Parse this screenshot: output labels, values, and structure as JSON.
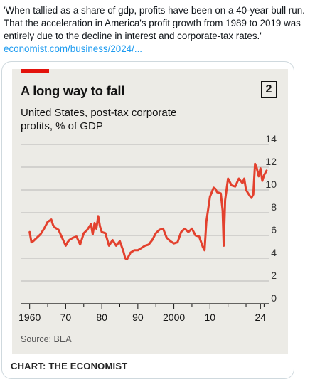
{
  "tweet": {
    "text": "'When tallied as a share of gdp, profits have been on a 40-year bull run. That the acceleration in America's profit growth from 1989 to 2019 was entirely due to the decline in interest and corporate-tax rates.'",
    "link": "economist.com/business/2024/..."
  },
  "card": {
    "footer": "CHART: THE ECONOMIST"
  },
  "chart_data": {
    "type": "line",
    "title": "A long way to fall",
    "chart_number": "2",
    "subtitle": "United States, post-tax corporate profits, % of GDP",
    "source": "Source: BEA",
    "x_tick_labels": [
      "1960",
      "70",
      "80",
      "90",
      "2000",
      "10",
      "24"
    ],
    "x_ticks": [
      1960,
      1970,
      1980,
      1990,
      2000,
      2010,
      2024
    ],
    "y_ticks": [
      0,
      2,
      4,
      6,
      8,
      10,
      12,
      14
    ],
    "xlim": [
      1957.5,
      2026.5
    ],
    "ylim": [
      0,
      14
    ],
    "grid": true,
    "series_color": "#e3412e",
    "series": [
      {
        "values": [
          [
            1960,
            6.3
          ],
          [
            1960.5,
            5.4
          ],
          [
            1961,
            5.5
          ],
          [
            1962,
            5.8
          ],
          [
            1963,
            6.1
          ],
          [
            1964,
            6.6
          ],
          [
            1965,
            7.2
          ],
          [
            1966,
            7.4
          ],
          [
            1966.5,
            6.9
          ],
          [
            1967,
            6.7
          ],
          [
            1968,
            6.5
          ],
          [
            1969,
            5.8
          ],
          [
            1970,
            5.1
          ],
          [
            1970.5,
            5.4
          ],
          [
            1971,
            5.6
          ],
          [
            1972,
            5.8
          ],
          [
            1973,
            5.9
          ],
          [
            1974,
            5.2
          ],
          [
            1975,
            6.2
          ],
          [
            1976,
            6.5
          ],
          [
            1977,
            7.0
          ],
          [
            1977.5,
            6.1
          ],
          [
            1978,
            7.1
          ],
          [
            1978.5,
            6.6
          ],
          [
            1979,
            7.7
          ],
          [
            1979.5,
            6.8
          ],
          [
            1980,
            6.3
          ],
          [
            1981,
            6.2
          ],
          [
            1982,
            5.1
          ],
          [
            1983,
            5.6
          ],
          [
            1984,
            5.1
          ],
          [
            1985,
            5.5
          ],
          [
            1986,
            4.6
          ],
          [
            1986.5,
            4.0
          ],
          [
            1987,
            3.9
          ],
          [
            1988,
            4.5
          ],
          [
            1989,
            4.7
          ],
          [
            1990,
            4.7
          ],
          [
            1991,
            4.9
          ],
          [
            1992,
            5.1
          ],
          [
            1993,
            5.2
          ],
          [
            1994,
            5.6
          ],
          [
            1995,
            6.2
          ],
          [
            1996,
            6.5
          ],
          [
            1997,
            6.6
          ],
          [
            1998,
            5.8
          ],
          [
            1999,
            5.5
          ],
          [
            2000,
            5.3
          ],
          [
            2001,
            5.4
          ],
          [
            2002,
            6.3
          ],
          [
            2003,
            6.6
          ],
          [
            2004,
            6.3
          ],
          [
            2005,
            6.6
          ],
          [
            2006,
            6.0
          ],
          [
            2007,
            5.9
          ],
          [
            2008,
            5.0
          ],
          [
            2008.5,
            4.7
          ],
          [
            2009,
            7.2
          ],
          [
            2010,
            9.4
          ],
          [
            2011,
            10.2
          ],
          [
            2011.5,
            10.1
          ],
          [
            2012,
            9.8
          ],
          [
            2013,
            9.7
          ],
          [
            2013.5,
            8.2
          ],
          [
            2013.8,
            5.1
          ],
          [
            2014.2,
            9.1
          ],
          [
            2015,
            11.0
          ],
          [
            2016,
            10.4
          ],
          [
            2017,
            10.3
          ],
          [
            2018,
            11.0
          ],
          [
            2019,
            10.6
          ],
          [
            2019.5,
            11.0
          ],
          [
            2020,
            10.0
          ],
          [
            2021,
            9.5
          ],
          [
            2021.5,
            9.3
          ],
          [
            2022,
            9.6
          ],
          [
            2022.5,
            12.3
          ],
          [
            2023,
            11.9
          ],
          [
            2023.5,
            11.2
          ],
          [
            2024,
            11.9
          ],
          [
            2024.5,
            10.8
          ],
          [
            2025,
            11.3
          ],
          [
            2025.7,
            11.7
          ]
        ]
      }
    ]
  }
}
